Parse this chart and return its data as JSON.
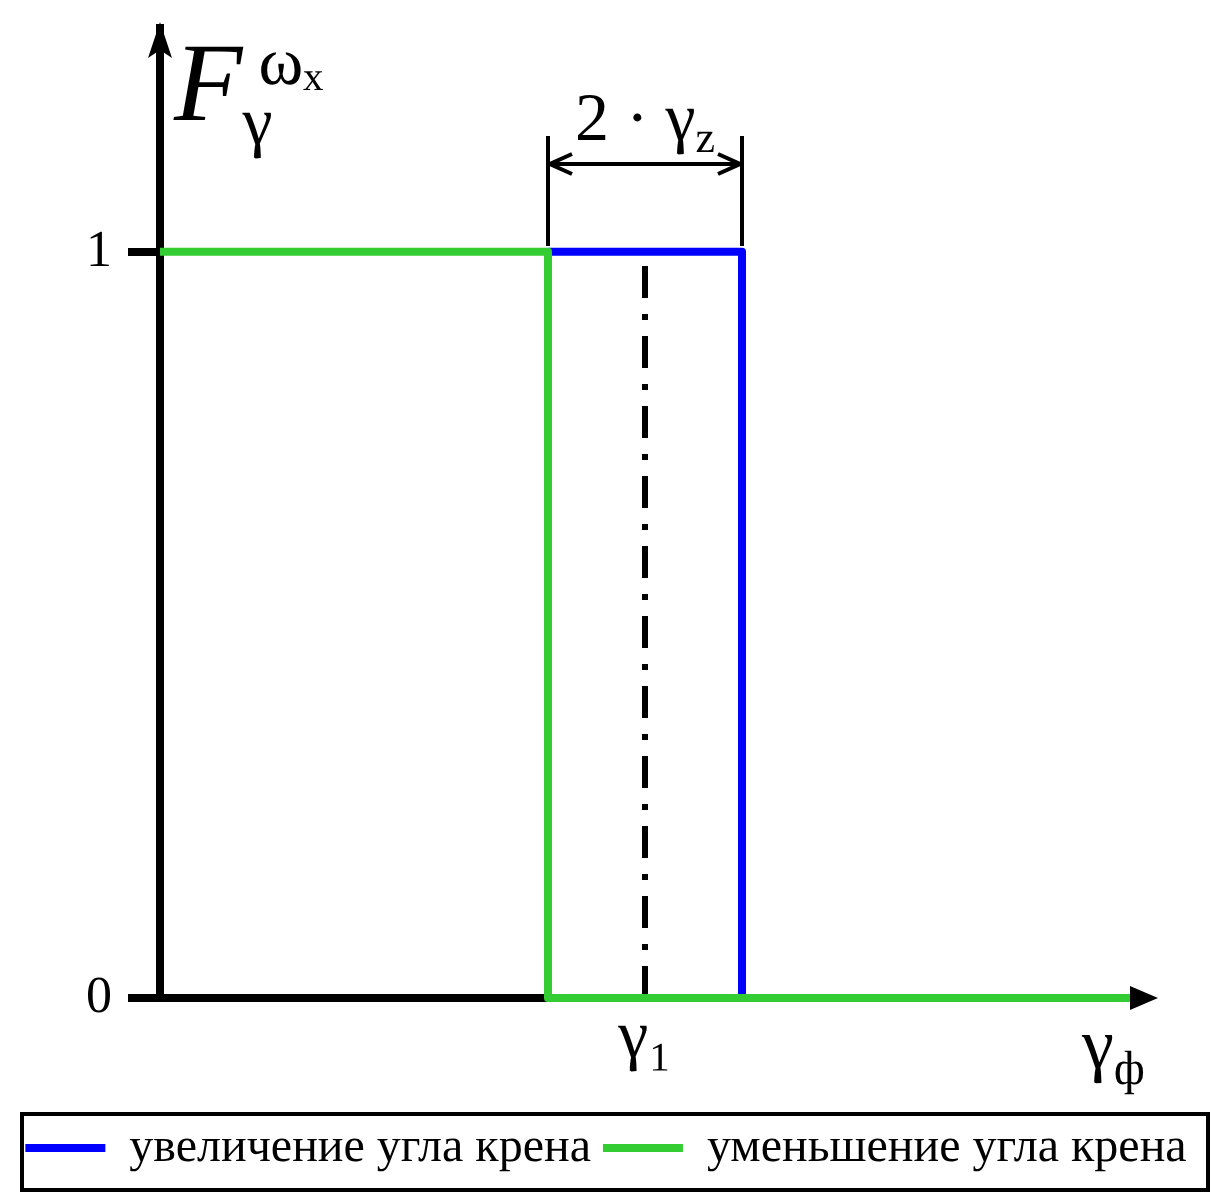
{
  "chart_data": {
    "type": "step",
    "ylabel": "F$_{γ}$$^{ωₓ}$",
    "xlabel": "γ$_{ф}$",
    "annotations": [
      "2 · γ$_{z}$"
    ],
    "categories": [
      null,
      null,
      null,
      null,
      null,
      "γ₁",
      null,
      null,
      null,
      null,
      null
    ],
    "series": [
      {
        "name": "увеличение угла крена",
        "color": "#0000ff",
        "values": [
          null,
          null,
          null,
          null,
          1,
          1,
          0,
          null,
          null,
          null,
          null
        ]
      },
      {
        "name": "уменьшение угла крена",
        "color": "#33cc33",
        "values": [
          1,
          1,
          1,
          1,
          0,
          0,
          0,
          0,
          0,
          0,
          0
        ]
      }
    ],
    "ylim": [
      0,
      1.3
    ],
    "yticks": [
      0,
      1
    ],
    "ref_lines": [
      {
        "axis": "x",
        "value": "γ₁",
        "line_style": "dashed",
        "color": "#000000"
      }
    ],
    "legend": "bottom"
  }
}
